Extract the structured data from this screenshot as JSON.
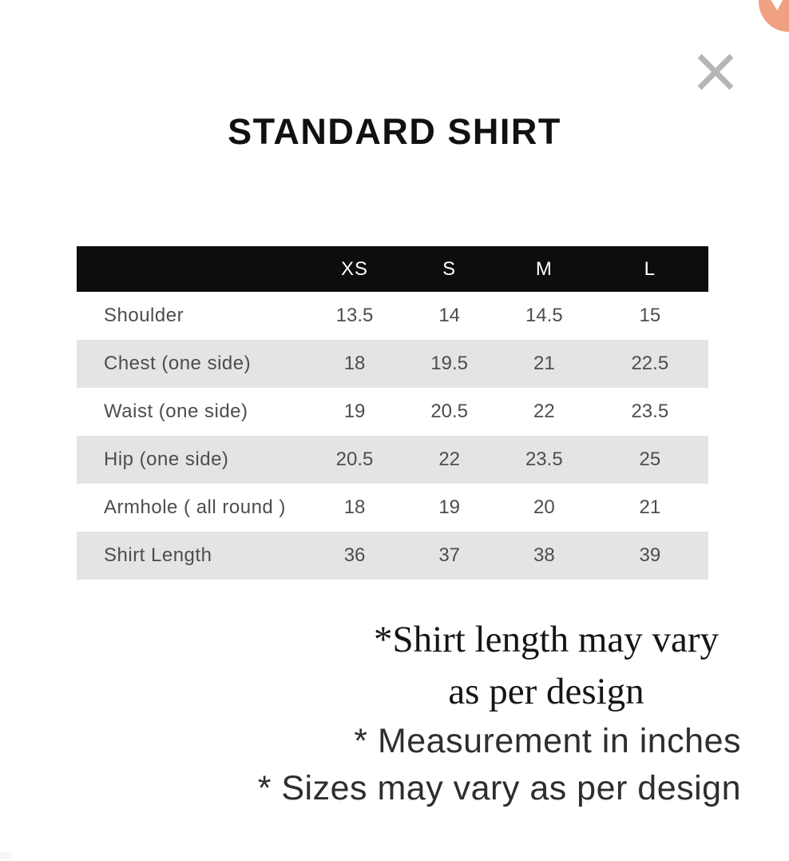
{
  "modal": {
    "title": "STANDARD SHIRT"
  },
  "colors": {
    "header_bg": "#0d0d0d",
    "row_alt_bg": "#e4e4e4",
    "close_icon": "#b6b6b6",
    "corner_bubble": "#f0a182",
    "table_text": "#4d4d4d"
  },
  "size_chart": {
    "columns": [
      "XS",
      "S",
      "M",
      "L"
    ],
    "rows": [
      {
        "label": "Shoulder",
        "values": [
          "13.5",
          "14",
          "14.5",
          "15"
        ]
      },
      {
        "label": "Chest (one side)",
        "values": [
          "18",
          "19.5",
          "21",
          "22.5"
        ]
      },
      {
        "label": "Waist (one side)",
        "values": [
          "19",
          "20.5",
          "22",
          "23.5"
        ]
      },
      {
        "label": "Hip (one side)",
        "values": [
          "20.5",
          "22",
          "23.5",
          "25"
        ]
      },
      {
        "label": "Armhole ( all round )",
        "values": [
          "18",
          "19",
          "20",
          "21"
        ]
      },
      {
        "label": "Shirt Length",
        "values": [
          "36",
          "37",
          "38",
          "39"
        ]
      }
    ]
  },
  "notes": {
    "serif_lines": [
      "*Shirt length may vary",
      "as per design"
    ],
    "sans_lines": [
      "* Measurement in inches",
      "* Sizes may vary as per design"
    ]
  }
}
